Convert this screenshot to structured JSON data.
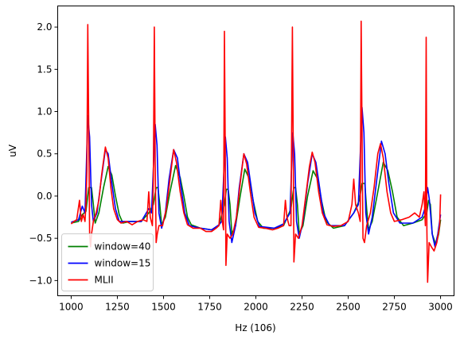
{
  "chart_data": {
    "type": "line",
    "title": "",
    "xlabel": "Hz (106)",
    "ylabel": "uV",
    "xlim": [
      927,
      3073
    ],
    "ylim": [
      -1.18,
      2.25
    ],
    "x_ticks": [
      1000,
      1250,
      1500,
      1750,
      2000,
      2250,
      2500,
      2750,
      3000
    ],
    "x_tick_labels": [
      "1000",
      "1250",
      "1500",
      "1750",
      "2000",
      "2250",
      "2500",
      "2750",
      "3000"
    ],
    "y_ticks": [
      -1.0,
      -0.5,
      0.0,
      0.5,
      1.0,
      1.5,
      2.0
    ],
    "y_tick_labels": [
      "−1.0",
      "−0.5",
      "0.0",
      "0.5",
      "1.0",
      "1.5",
      "2.0"
    ],
    "grid": false,
    "legend_position": "lower-left",
    "series": [
      {
        "name": "window=40",
        "color": "#008000",
        "points": [
          [
            1000,
            -0.32
          ],
          [
            1040,
            -0.3
          ],
          [
            1060,
            -0.22
          ],
          [
            1080,
            -0.18
          ],
          [
            1095,
            0.1
          ],
          [
            1110,
            0.1
          ],
          [
            1120,
            -0.1
          ],
          [
            1130,
            -0.32
          ],
          [
            1150,
            -0.2
          ],
          [
            1175,
            0.1
          ],
          [
            1200,
            0.35
          ],
          [
            1220,
            0.25
          ],
          [
            1240,
            0.0
          ],
          [
            1260,
            -0.22
          ],
          [
            1280,
            -0.32
          ],
          [
            1320,
            -0.3
          ],
          [
            1380,
            -0.3
          ],
          [
            1420,
            -0.2
          ],
          [
            1445,
            -0.1
          ],
          [
            1460,
            0.1
          ],
          [
            1470,
            0.1
          ],
          [
            1480,
            -0.1
          ],
          [
            1490,
            -0.34
          ],
          [
            1510,
            -0.25
          ],
          [
            1535,
            0.05
          ],
          [
            1565,
            0.36
          ],
          [
            1590,
            0.22
          ],
          [
            1610,
            0.0
          ],
          [
            1630,
            -0.25
          ],
          [
            1650,
            -0.34
          ],
          [
            1700,
            -0.38
          ],
          [
            1760,
            -0.4
          ],
          [
            1800,
            -0.35
          ],
          [
            1830,
            -0.1
          ],
          [
            1840,
            0.08
          ],
          [
            1850,
            0.08
          ],
          [
            1860,
            -0.1
          ],
          [
            1870,
            -0.45
          ],
          [
            1890,
            -0.35
          ],
          [
            1915,
            0.0
          ],
          [
            1940,
            0.32
          ],
          [
            1965,
            0.2
          ],
          [
            1985,
            -0.05
          ],
          [
            2010,
            -0.3
          ],
          [
            2040,
            -0.38
          ],
          [
            2100,
            -0.38
          ],
          [
            2150,
            -0.35
          ],
          [
            2190,
            -0.15
          ],
          [
            2205,
            0.1
          ],
          [
            2215,
            0.1
          ],
          [
            2225,
            -0.1
          ],
          [
            2235,
            -0.45
          ],
          [
            2255,
            -0.35
          ],
          [
            2280,
            0.0
          ],
          [
            2310,
            0.3
          ],
          [
            2335,
            0.2
          ],
          [
            2355,
            -0.05
          ],
          [
            2380,
            -0.3
          ],
          [
            2420,
            -0.38
          ],
          [
            2480,
            -0.35
          ],
          [
            2530,
            -0.2
          ],
          [
            2560,
            -0.05
          ],
          [
            2575,
            0.15
          ],
          [
            2590,
            0.15
          ],
          [
            2600,
            -0.15
          ],
          [
            2610,
            -0.4
          ],
          [
            2630,
            -0.3
          ],
          [
            2660,
            0.05
          ],
          [
            2690,
            0.4
          ],
          [
            2715,
            0.3
          ],
          [
            2740,
            0.05
          ],
          [
            2765,
            -0.25
          ],
          [
            2800,
            -0.35
          ],
          [
            2850,
            -0.32
          ],
          [
            2900,
            -0.28
          ],
          [
            2925,
            -0.2
          ],
          [
            2935,
            -0.05
          ],
          [
            2945,
            -0.1
          ],
          [
            2955,
            -0.45
          ],
          [
            2975,
            -0.58
          ],
          [
            2990,
            -0.45
          ],
          [
            3000,
            -0.28
          ]
        ]
      },
      {
        "name": "window=15",
        "color": "#0000ff",
        "points": [
          [
            1000,
            -0.31
          ],
          [
            1040,
            -0.28
          ],
          [
            1060,
            -0.12
          ],
          [
            1075,
            -0.2
          ],
          [
            1090,
            0.95
          ],
          [
            1100,
            0.7
          ],
          [
            1110,
            -0.1
          ],
          [
            1120,
            -0.3
          ],
          [
            1140,
            -0.2
          ],
          [
            1160,
            0.15
          ],
          [
            1185,
            0.55
          ],
          [
            1200,
            0.5
          ],
          [
            1220,
            0.15
          ],
          [
            1240,
            -0.15
          ],
          [
            1260,
            -0.3
          ],
          [
            1320,
            -0.3
          ],
          [
            1380,
            -0.3
          ],
          [
            1420,
            -0.15
          ],
          [
            1435,
            -0.2
          ],
          [
            1455,
            0.85
          ],
          [
            1465,
            0.6
          ],
          [
            1475,
            -0.2
          ],
          [
            1490,
            -0.38
          ],
          [
            1510,
            -0.2
          ],
          [
            1530,
            0.2
          ],
          [
            1555,
            0.55
          ],
          [
            1575,
            0.45
          ],
          [
            1595,
            0.1
          ],
          [
            1615,
            -0.2
          ],
          [
            1640,
            -0.35
          ],
          [
            1700,
            -0.38
          ],
          [
            1760,
            -0.4
          ],
          [
            1800,
            -0.34
          ],
          [
            1815,
            -0.3
          ],
          [
            1835,
            0.7
          ],
          [
            1845,
            0.45
          ],
          [
            1855,
            -0.3
          ],
          [
            1870,
            -0.55
          ],
          [
            1890,
            -0.35
          ],
          [
            1910,
            0.1
          ],
          [
            1935,
            0.5
          ],
          [
            1955,
            0.4
          ],
          [
            1975,
            0.1
          ],
          [
            1995,
            -0.2
          ],
          [
            2020,
            -0.36
          ],
          [
            2100,
            -0.38
          ],
          [
            2150,
            -0.33
          ],
          [
            2185,
            -0.2
          ],
          [
            2200,
            0.75
          ],
          [
            2210,
            0.5
          ],
          [
            2220,
            -0.3
          ],
          [
            2235,
            -0.5
          ],
          [
            2255,
            -0.3
          ],
          [
            2280,
            0.15
          ],
          [
            2305,
            0.5
          ],
          [
            2325,
            0.4
          ],
          [
            2345,
            0.1
          ],
          [
            2365,
            -0.2
          ],
          [
            2400,
            -0.35
          ],
          [
            2480,
            -0.35
          ],
          [
            2530,
            -0.2
          ],
          [
            2555,
            -0.1
          ],
          [
            2575,
            1.05
          ],
          [
            2585,
            0.75
          ],
          [
            2595,
            -0.2
          ],
          [
            2610,
            -0.45
          ],
          [
            2630,
            -0.25
          ],
          [
            2655,
            0.2
          ],
          [
            2680,
            0.65
          ],
          [
            2700,
            0.5
          ],
          [
            2720,
            0.15
          ],
          [
            2745,
            -0.2
          ],
          [
            2780,
            -0.32
          ],
          [
            2850,
            -0.32
          ],
          [
            2900,
            -0.25
          ],
          [
            2915,
            -0.15
          ],
          [
            2930,
            0.1
          ],
          [
            2940,
            -0.05
          ],
          [
            2955,
            -0.45
          ],
          [
            2970,
            -0.6
          ],
          [
            2985,
            -0.45
          ],
          [
            3000,
            -0.22
          ]
        ]
      },
      {
        "name": "MLII",
        "color": "#ff0000",
        "points": [
          [
            1000,
            -0.33
          ],
          [
            1015,
            -0.3
          ],
          [
            1030,
            -0.28
          ],
          [
            1045,
            -0.05
          ],
          [
            1055,
            -0.3
          ],
          [
            1065,
            -0.22
          ],
          [
            1075,
            -0.3
          ],
          [
            1080,
            -0.1
          ],
          [
            1085,
            0.3
          ],
          [
            1090,
            2.03
          ],
          [
            1096,
            0.6
          ],
          [
            1100,
            -0.45
          ],
          [
            1105,
            -0.6
          ],
          [
            1110,
            -0.45
          ],
          [
            1120,
            -0.3
          ],
          [
            1135,
            -0.2
          ],
          [
            1150,
            -0.05
          ],
          [
            1165,
            0.25
          ],
          [
            1185,
            0.58
          ],
          [
            1200,
            0.45
          ],
          [
            1215,
            0.1
          ],
          [
            1230,
            -0.15
          ],
          [
            1250,
            -0.28
          ],
          [
            1270,
            -0.32
          ],
          [
            1300,
            -0.3
          ],
          [
            1330,
            -0.34
          ],
          [
            1360,
            -0.3
          ],
          [
            1390,
            -0.28
          ],
          [
            1410,
            -0.3
          ],
          [
            1420,
            0.05
          ],
          [
            1428,
            -0.25
          ],
          [
            1440,
            -0.35
          ],
          [
            1445,
            0.2
          ],
          [
            1450,
            2.0
          ],
          [
            1455,
            0.4
          ],
          [
            1460,
            -0.55
          ],
          [
            1466,
            -0.45
          ],
          [
            1475,
            -0.35
          ],
          [
            1495,
            -0.35
          ],
          [
            1515,
            -0.15
          ],
          [
            1535,
            0.2
          ],
          [
            1555,
            0.55
          ],
          [
            1570,
            0.4
          ],
          [
            1590,
            0.05
          ],
          [
            1610,
            -0.2
          ],
          [
            1630,
            -0.34
          ],
          [
            1660,
            -0.38
          ],
          [
            1700,
            -0.38
          ],
          [
            1730,
            -0.42
          ],
          [
            1760,
            -0.42
          ],
          [
            1785,
            -0.38
          ],
          [
            1800,
            -0.35
          ],
          [
            1810,
            -0.05
          ],
          [
            1818,
            -0.3
          ],
          [
            1825,
            -0.4
          ],
          [
            1830,
            1.95
          ],
          [
            1835,
            0.3
          ],
          [
            1838,
            -0.82
          ],
          [
            1845,
            -0.45
          ],
          [
            1860,
            -0.5
          ],
          [
            1875,
            -0.45
          ],
          [
            1895,
            -0.25
          ],
          [
            1915,
            0.15
          ],
          [
            1935,
            0.5
          ],
          [
            1950,
            0.38
          ],
          [
            1970,
            0.05
          ],
          [
            1990,
            -0.25
          ],
          [
            2015,
            -0.37
          ],
          [
            2050,
            -0.38
          ],
          [
            2090,
            -0.4
          ],
          [
            2120,
            -0.38
          ],
          [
            2150,
            -0.35
          ],
          [
            2160,
            -0.05
          ],
          [
            2168,
            -0.25
          ],
          [
            2180,
            -0.35
          ],
          [
            2190,
            -0.35
          ],
          [
            2198,
            2.0
          ],
          [
            2203,
            0.4
          ],
          [
            2206,
            -0.78
          ],
          [
            2215,
            -0.45
          ],
          [
            2230,
            -0.5
          ],
          [
            2250,
            -0.35
          ],
          [
            2270,
            0.0
          ],
          [
            2290,
            0.35
          ],
          [
            2305,
            0.52
          ],
          [
            2320,
            0.4
          ],
          [
            2340,
            0.05
          ],
          [
            2360,
            -0.2
          ],
          [
            2385,
            -0.34
          ],
          [
            2420,
            -0.36
          ],
          [
            2460,
            -0.35
          ],
          [
            2500,
            -0.3
          ],
          [
            2520,
            -0.1
          ],
          [
            2530,
            0.2
          ],
          [
            2540,
            -0.1
          ],
          [
            2555,
            -0.2
          ],
          [
            2565,
            -0.3
          ],
          [
            2570,
            2.07
          ],
          [
            2576,
            0.4
          ],
          [
            2580,
            -0.5
          ],
          [
            2588,
            -0.55
          ],
          [
            2600,
            -0.35
          ],
          [
            2620,
            -0.2
          ],
          [
            2640,
            0.1
          ],
          [
            2660,
            0.5
          ],
          [
            2675,
            0.62
          ],
          [
            2690,
            0.45
          ],
          [
            2710,
            0.05
          ],
          [
            2730,
            -0.2
          ],
          [
            2750,
            -0.3
          ],
          [
            2790,
            -0.28
          ],
          [
            2830,
            -0.25
          ],
          [
            2860,
            -0.2
          ],
          [
            2885,
            -0.25
          ],
          [
            2900,
            -0.1
          ],
          [
            2910,
            0.05
          ],
          [
            2918,
            -0.35
          ],
          [
            2922,
            1.88
          ],
          [
            2926,
            -0.4
          ],
          [
            2930,
            -1.02
          ],
          [
            2938,
            -0.55
          ],
          [
            2950,
            -0.6
          ],
          [
            2965,
            -0.65
          ],
          [
            2980,
            -0.55
          ],
          [
            2995,
            -0.35
          ],
          [
            3000,
            0.02
          ]
        ]
      }
    ]
  }
}
